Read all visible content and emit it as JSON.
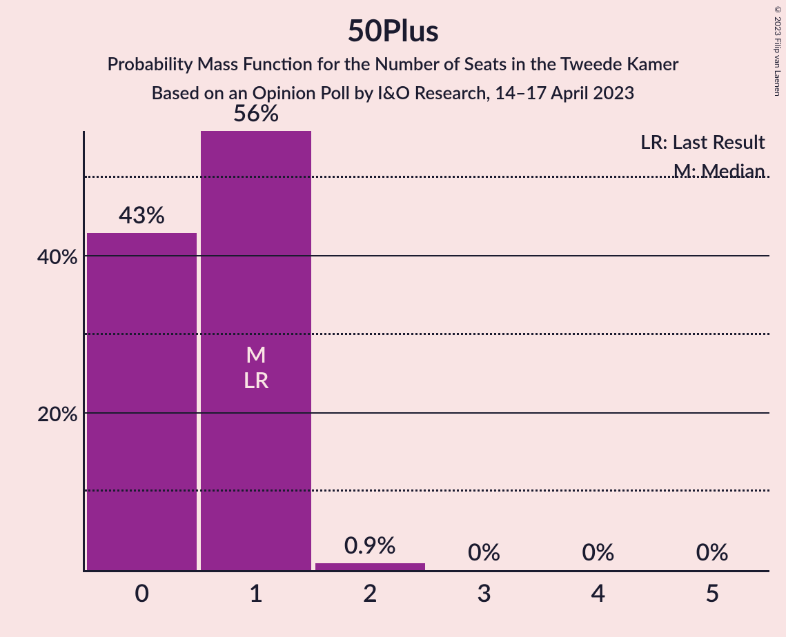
{
  "copyright": "© 2023 Filip van Laenen",
  "title": "50Plus",
  "subtitle1": "Probability Mass Function for the Number of Seats in the Tweede Kamer",
  "subtitle2": "Based on an Opinion Poll by I&O Research, 14–17 April 2023",
  "legend": {
    "lr": "LR: Last Result",
    "m": "M: Median"
  },
  "chart": {
    "type": "bar",
    "background_color": "#f9e4e4",
    "bar_color": "#92278f",
    "axis_color": "#1b1b2f",
    "text_color": "#1b1b2f",
    "bar_inner_text_color": "#f9e4e4",
    "y_max_pct": 56,
    "y_ticks": [
      {
        "value": 10,
        "label": "",
        "style": "dotted"
      },
      {
        "value": 20,
        "label": "20%",
        "style": "solid"
      },
      {
        "value": 30,
        "label": "",
        "style": "dotted"
      },
      {
        "value": 40,
        "label": "40%",
        "style": "solid"
      },
      {
        "value": 50,
        "label": "",
        "style": "dotted"
      }
    ],
    "categories": [
      "0",
      "1",
      "2",
      "3",
      "4",
      "5"
    ],
    "values_pct": [
      43,
      56,
      0.9,
      0,
      0,
      0
    ],
    "value_labels": [
      "43%",
      "56%",
      "0.9%",
      "0%",
      "0%",
      "0%"
    ],
    "markers": [
      {
        "index": 1,
        "text": "M\nLR"
      }
    ],
    "title_fontsize_pt": 44,
    "subtitle_fontsize_pt": 26,
    "axis_label_fontsize_pt": 30,
    "bar_label_fontsize_pt": 34,
    "x_label_fontsize_pt": 36,
    "legend_fontsize_pt": 28
  }
}
